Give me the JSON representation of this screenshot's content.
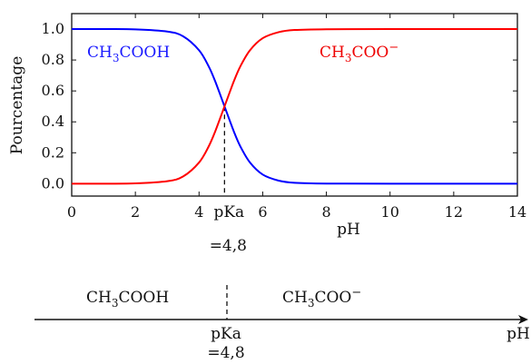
{
  "chart_data": {
    "type": "line",
    "xlabel": "pH",
    "ylabel": "Pourcentage",
    "xlim": [
      0,
      14
    ],
    "ylim": [
      -0.08,
      1.1
    ],
    "x_ticks": [
      "0",
      "2",
      "4",
      "6",
      "8",
      "10",
      "12",
      "14"
    ],
    "y_ticks": [
      "0.0",
      "0.2",
      "0.4",
      "0.6",
      "0.8",
      "1.0"
    ],
    "pKa": 4.8,
    "pKa_label_line1": "pKa",
    "pKa_label_line2": "=4,8",
    "series": [
      {
        "name": "CH3COOH",
        "color": "#0000ff",
        "x": [
          0,
          1,
          2,
          3,
          3.5,
          4,
          4.3,
          4.5,
          4.8,
          5.1,
          5.3,
          5.6,
          6,
          6.5,
          7,
          8,
          10,
          14
        ],
        "y": [
          1.0,
          1.0,
          0.998,
          0.984,
          0.953,
          0.863,
          0.76,
          0.666,
          0.5,
          0.334,
          0.24,
          0.137,
          0.059,
          0.02,
          0.006,
          0.001,
          0.0,
          0.0
        ]
      },
      {
        "name": "CH3COO−",
        "color": "#ff0000",
        "x": [
          0,
          1,
          2,
          3,
          3.5,
          4,
          4.3,
          4.5,
          4.8,
          5.1,
          5.3,
          5.6,
          6,
          6.5,
          7,
          8,
          10,
          14
        ],
        "y": [
          0.0,
          0.0,
          0.002,
          0.016,
          0.047,
          0.137,
          0.24,
          0.334,
          0.5,
          0.666,
          0.76,
          0.863,
          0.941,
          0.98,
          0.994,
          0.999,
          1.0,
          1.0
        ]
      }
    ]
  },
  "labels": {
    "blue_species_main": "CH",
    "blue_species_sub": "3",
    "blue_species_rest": "COOH",
    "red_species_main": "CH",
    "red_species_sub": "3",
    "red_species_rest": "COO",
    "red_species_sup": "−"
  },
  "bottom_axis": {
    "acid_main": "CH",
    "acid_sub": "3",
    "acid_rest": "COOH",
    "base_main": "CH",
    "base_sub": "3",
    "base_rest": "COO",
    "base_sup": "−",
    "pKa_line1": "pKa",
    "pKa_line2": "=4,8",
    "axis_label": "pH"
  }
}
